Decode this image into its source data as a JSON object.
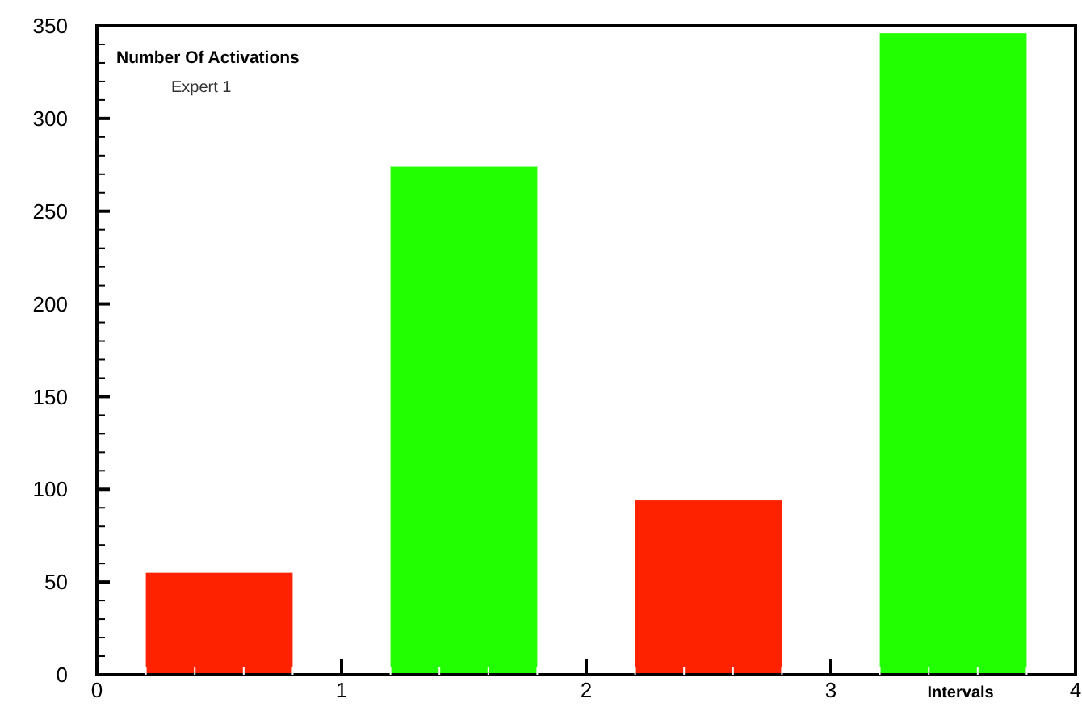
{
  "chart_data": {
    "type": "bar",
    "title": "Number Of Activations",
    "subtitle": "Expert 1",
    "xlabel": "Intervals",
    "x": [
      0.5,
      1.5,
      2.5,
      3.5
    ],
    "values": [
      55,
      274,
      94,
      346
    ],
    "colors": [
      "#ff2200",
      "#22ff00",
      "#ff2200",
      "#22ff00"
    ],
    "xlim": [
      0,
      4
    ],
    "xticks": [
      0,
      1,
      2,
      3,
      4
    ],
    "ylim": [
      0,
      350
    ],
    "yticks": [
      0,
      50,
      100,
      150,
      200,
      250,
      300,
      350
    ]
  }
}
